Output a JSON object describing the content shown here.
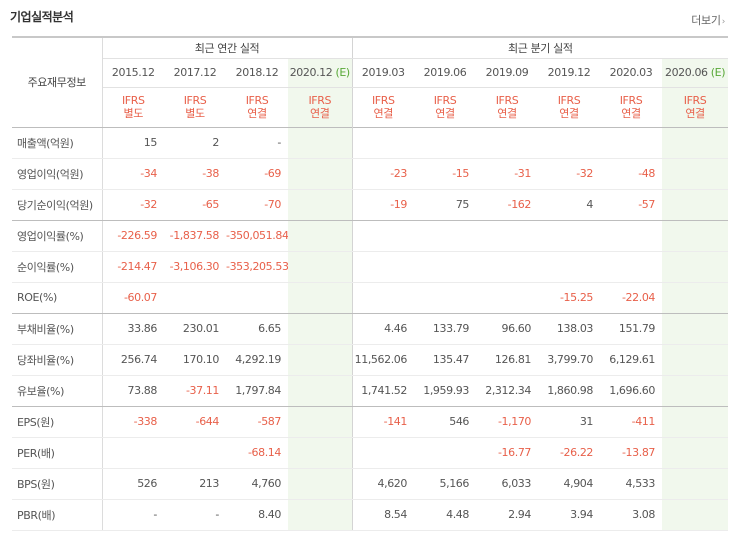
{
  "header": {
    "title": "기업실적분석",
    "more_label": "더보기",
    "more_icon": "chevron-right-icon"
  },
  "table": {
    "corner_label": "주요재무정보",
    "groups": {
      "annual": "최근 연간 실적",
      "quarter": "최근 분기 실적"
    },
    "periods": [
      {
        "label": "2015.12",
        "estimate": false,
        "type_line1": "IFRS",
        "type_line2": "별도"
      },
      {
        "label": "2017.12",
        "estimate": false,
        "type_line1": "IFRS",
        "type_line2": "별도"
      },
      {
        "label": "2018.12",
        "estimate": false,
        "type_line1": "IFRS",
        "type_line2": "연결"
      },
      {
        "label": "2020.12",
        "estimate": true,
        "est_mark": "(E)",
        "type_line1": "IFRS",
        "type_line2": "연결"
      },
      {
        "label": "2019.03",
        "estimate": false,
        "type_line1": "IFRS",
        "type_line2": "연결"
      },
      {
        "label": "2019.06",
        "estimate": false,
        "type_line1": "IFRS",
        "type_line2": "연결"
      },
      {
        "label": "2019.09",
        "estimate": false,
        "type_line1": "IFRS",
        "type_line2": "연결"
      },
      {
        "label": "2019.12",
        "estimate": false,
        "type_line1": "IFRS",
        "type_line2": "연결"
      },
      {
        "label": "2020.03",
        "estimate": false,
        "type_line1": "IFRS",
        "type_line2": "연결"
      },
      {
        "label": "2020.06",
        "estimate": true,
        "est_mark": "(E)",
        "type_line1": "IFRS",
        "type_line2": "연결"
      }
    ],
    "rows": [
      {
        "label": "매출액(억원)",
        "values": [
          "15",
          "2",
          "-",
          "",
          "",
          "",
          "",
          "",
          "",
          ""
        ]
      },
      {
        "label": "영업이익(억원)",
        "values": [
          "-34",
          "-38",
          "-69",
          "",
          "-23",
          "-15",
          "-31",
          "-32",
          "-48",
          ""
        ]
      },
      {
        "label": "당기순이익(억원)",
        "values": [
          "-32",
          "-65",
          "-70",
          "",
          "-19",
          "75",
          "-162",
          "4",
          "-57",
          ""
        ]
      },
      {
        "label": "영업이익률(%)",
        "values": [
          "-226.59",
          "-1,837.58",
          "-350,051.84",
          "",
          "",
          "",
          "",
          "",
          "",
          ""
        ]
      },
      {
        "label": "순이익률(%)",
        "values": [
          "-214.47",
          "-3,106.30",
          "-353,205.53",
          "",
          "",
          "",
          "",
          "",
          "",
          ""
        ]
      },
      {
        "label": "ROE(%)",
        "values": [
          "-60.07",
          "",
          "",
          "",
          "",
          "",
          "",
          "-15.25",
          "-22.04",
          ""
        ]
      },
      {
        "label": "부채비율(%)",
        "values": [
          "33.86",
          "230.01",
          "6.65",
          "",
          "4.46",
          "133.79",
          "96.60",
          "138.03",
          "151.79",
          ""
        ]
      },
      {
        "label": "당좌비율(%)",
        "values": [
          "256.74",
          "170.10",
          "4,292.19",
          "",
          "11,562.06",
          "135.47",
          "126.81",
          "3,799.70",
          "6,129.61",
          ""
        ]
      },
      {
        "label": "유보율(%)",
        "values": [
          "73.88",
          "-37.11",
          "1,797.84",
          "",
          "1,741.52",
          "1,959.93",
          "2,312.34",
          "1,860.98",
          "1,696.60",
          ""
        ]
      },
      {
        "label": "EPS(원)",
        "values": [
          "-338",
          "-644",
          "-587",
          "",
          "-141",
          "546",
          "-1,170",
          "31",
          "-411",
          ""
        ]
      },
      {
        "label": "PER(배)",
        "values": [
          "",
          "",
          "-68.14",
          "",
          "",
          "",
          "-16.77",
          "-26.22",
          "-13.87",
          ""
        ]
      },
      {
        "label": "BPS(원)",
        "values": [
          "526",
          "213",
          "4,760",
          "",
          "4,620",
          "5,166",
          "6,033",
          "4,904",
          "4,533",
          ""
        ]
      },
      {
        "label": "PBR(배)",
        "values": [
          "-",
          "-",
          "8.40",
          "",
          "8.54",
          "4.48",
          "2.94",
          "3.94",
          "3.08",
          ""
        ]
      }
    ]
  },
  "colors": {
    "negative": "#e8604a",
    "estimate_bg": "#f1f8ed",
    "estimate_mark": "#58a838"
  }
}
